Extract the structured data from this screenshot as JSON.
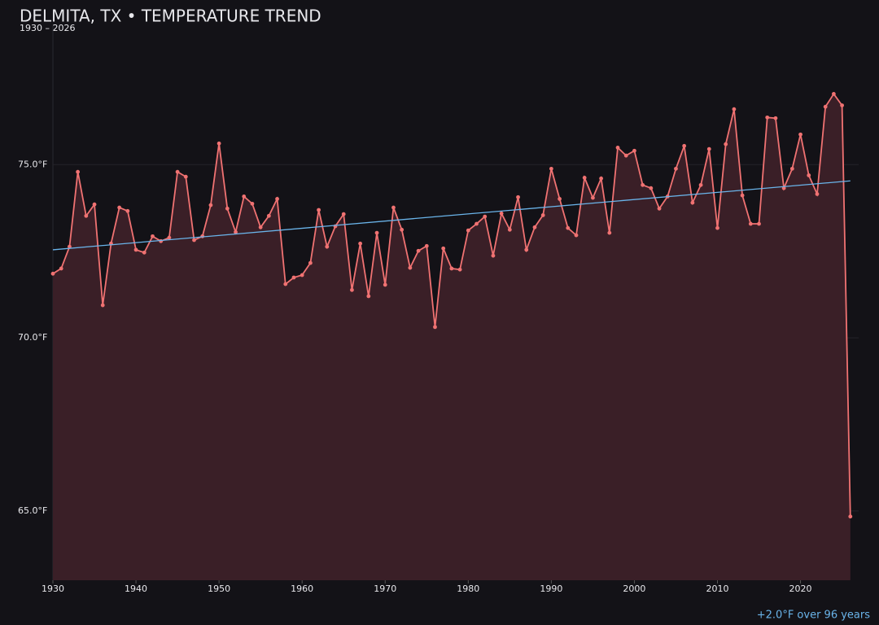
{
  "chart_data": {
    "type": "line",
    "title": "DELMITA, TX • TEMPERATURE TREND",
    "subtitle": "1930 – 2026",
    "annotation": "+2.0°F over 96 years",
    "x": [
      1930,
      1931,
      1932,
      1933,
      1934,
      1935,
      1936,
      1937,
      1938,
      1939,
      1940,
      1941,
      1942,
      1943,
      1944,
      1945,
      1946,
      1947,
      1948,
      1949,
      1950,
      1951,
      1952,
      1953,
      1954,
      1955,
      1956,
      1957,
      1958,
      1959,
      1960,
      1961,
      1962,
      1963,
      1964,
      1965,
      1966,
      1967,
      1968,
      1969,
      1970,
      1971,
      1972,
      1973,
      1974,
      1975,
      1976,
      1977,
      1978,
      1979,
      1980,
      1981,
      1982,
      1983,
      1984,
      1985,
      1986,
      1987,
      1988,
      1989,
      1990,
      1991,
      1992,
      1993,
      1994,
      1995,
      1996,
      1997,
      1998,
      1999,
      2000,
      2001,
      2002,
      2003,
      2004,
      2005,
      2006,
      2007,
      2008,
      2009,
      2010,
      2011,
      2012,
      2013,
      2014,
      2015,
      2016,
      2017,
      2018,
      2019,
      2020,
      2021,
      2022,
      2023,
      2024,
      2025,
      2026
    ],
    "series": [
      {
        "color": "#f07272",
        "fill": "#3a1f27",
        "values": [
          71.85,
          72.0,
          72.63,
          74.79,
          73.52,
          73.85,
          70.94,
          72.72,
          73.76,
          73.66,
          72.54,
          72.46,
          72.93,
          72.79,
          72.89,
          74.79,
          74.65,
          72.82,
          72.93,
          73.83,
          75.61,
          73.73,
          73.05,
          74.08,
          73.87,
          73.19,
          73.52,
          74.01,
          71.55,
          71.74,
          71.81,
          72.16,
          73.69,
          72.63,
          73.22,
          73.57,
          71.38,
          72.72,
          71.2,
          73.03,
          71.53,
          73.76,
          73.12,
          72.02,
          72.51,
          72.65,
          70.31,
          72.58,
          72.0,
          71.97,
          73.1,
          73.29,
          73.5,
          72.37,
          73.59,
          73.12,
          74.06,
          72.54,
          73.19,
          73.54,
          74.88,
          74.01,
          73.17,
          72.96,
          74.62,
          74.04,
          74.6,
          73.03,
          75.49,
          75.26,
          75.4,
          74.41,
          74.32,
          73.73,
          74.08,
          74.88,
          75.54,
          73.9,
          74.41,
          75.45,
          73.17,
          75.59,
          76.6,
          74.11,
          73.29,
          73.29,
          76.36,
          76.34,
          74.32,
          74.88,
          75.87,
          74.69,
          74.15,
          76.67,
          77.04,
          76.71,
          64.84
        ]
      }
    ],
    "trend": {
      "color": "#6ab4ea",
      "x": [
        1930,
        2026
      ],
      "values": [
        72.54,
        74.53
      ]
    },
    "xlim": [
      1930,
      2027
    ],
    "ylim": [
      63,
      79
    ],
    "xticks": [
      1930,
      1940,
      1950,
      1960,
      1970,
      1980,
      1990,
      2000,
      2010,
      2020
    ],
    "yticks": [
      {
        "value": 65,
        "label": "65.0°F"
      },
      {
        "value": 70,
        "label": "70.0°F"
      },
      {
        "value": 75,
        "label": "75.0°F"
      }
    ],
    "grid": true
  }
}
